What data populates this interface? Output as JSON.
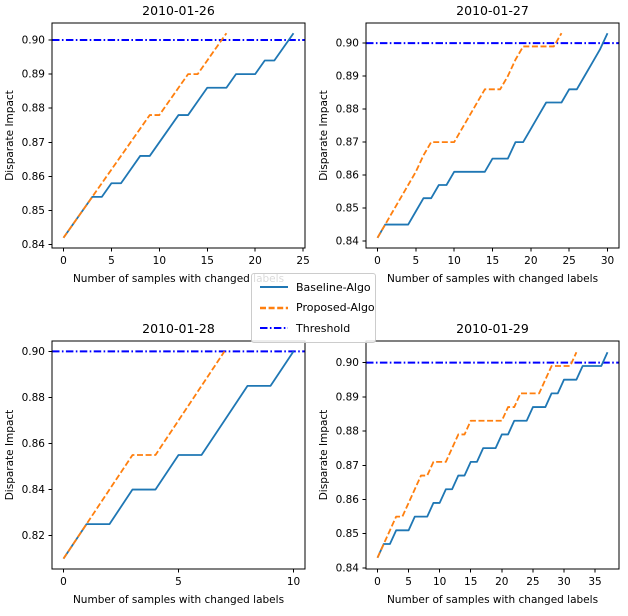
{
  "figure": {
    "background": "#ffffff"
  },
  "colors": {
    "baseline": "#1f77b4",
    "proposed": "#ff7f0e",
    "threshold": "#0000ff",
    "axis": "#000000",
    "legend_border": "#cccccc"
  },
  "legend": {
    "position": "figure-center",
    "items": [
      {
        "label": "Baseline-Algo",
        "color": "#1f77b4",
        "style": "solid"
      },
      {
        "label": "Proposed-Algo",
        "color": "#ff7f0e",
        "style": "dashed"
      },
      {
        "label": "Threshold",
        "color": "#0000ff",
        "style": "dashdot"
      }
    ]
  },
  "chart_data": [
    {
      "type": "line",
      "title": "2010-01-26",
      "xlabel": "Number of samples with changed labels",
      "ylabel": "Disparate Impact",
      "xlim": [
        -1.2,
        25.2
      ],
      "ylim": [
        0.839,
        0.905
      ],
      "xticks": [
        0,
        5,
        10,
        15,
        20,
        25
      ],
      "yticks": [
        0.84,
        0.85,
        0.86,
        0.87,
        0.88,
        0.89,
        0.9
      ],
      "grid": false,
      "threshold": 0.9,
      "series": [
        {
          "name": "Baseline-Algo",
          "style": "solid",
          "color": "#1f77b4",
          "x": [
            0,
            1,
            2,
            3,
            4,
            5,
            6,
            7,
            8,
            9,
            10,
            11,
            12,
            13,
            14,
            15,
            16,
            17,
            18,
            19,
            20,
            21,
            22,
            23,
            24
          ],
          "y": [
            0.842,
            0.846,
            0.85,
            0.854,
            0.854,
            0.858,
            0.858,
            0.862,
            0.866,
            0.866,
            0.87,
            0.874,
            0.878,
            0.878,
            0.882,
            0.886,
            0.886,
            0.886,
            0.89,
            0.89,
            0.89,
            0.894,
            0.894,
            0.898,
            0.902
          ]
        },
        {
          "name": "Proposed-Algo",
          "style": "dashed",
          "color": "#ff7f0e",
          "x": [
            0,
            1,
            2,
            3,
            4,
            5,
            6,
            7,
            8,
            9,
            10,
            11,
            12,
            13,
            14,
            15,
            16,
            17
          ],
          "y": [
            0.842,
            0.846,
            0.85,
            0.854,
            0.858,
            0.862,
            0.866,
            0.87,
            0.874,
            0.878,
            0.878,
            0.882,
            0.886,
            0.89,
            0.89,
            0.894,
            0.898,
            0.902
          ]
        }
      ]
    },
    {
      "type": "line",
      "title": "2010-01-27",
      "xlabel": "Number of samples with changed labels",
      "ylabel": "Disparate Impact",
      "xlim": [
        -1.5,
        31.5
      ],
      "ylim": [
        0.8379,
        0.9061
      ],
      "xticks": [
        0,
        5,
        10,
        15,
        20,
        25,
        30
      ],
      "yticks": [
        0.84,
        0.85,
        0.86,
        0.87,
        0.88,
        0.89,
        0.9
      ],
      "grid": false,
      "threshold": 0.9,
      "series": [
        {
          "name": "Baseline-Algo",
          "style": "solid",
          "color": "#1f77b4",
          "x": [
            0,
            1,
            2,
            3,
            4,
            5,
            6,
            7,
            8,
            9,
            10,
            11,
            12,
            13,
            14,
            15,
            16,
            17,
            18,
            19,
            20,
            21,
            22,
            23,
            24,
            25,
            26,
            27,
            28,
            29,
            30
          ],
          "y": [
            0.841,
            0.845,
            0.845,
            0.845,
            0.845,
            0.849,
            0.853,
            0.853,
            0.857,
            0.857,
            0.861,
            0.861,
            0.861,
            0.861,
            0.861,
            0.865,
            0.865,
            0.865,
            0.87,
            0.87,
            0.874,
            0.878,
            0.882,
            0.882,
            0.882,
            0.886,
            0.886,
            0.89,
            0.894,
            0.898,
            0.903
          ]
        },
        {
          "name": "Proposed-Algo",
          "style": "dashed",
          "color": "#ff7f0e",
          "x": [
            0,
            1,
            2,
            3,
            4,
            5,
            6,
            7,
            8,
            9,
            10,
            11,
            12,
            13,
            14,
            15,
            16,
            17,
            18,
            19,
            20,
            21,
            22,
            23,
            24
          ],
          "y": [
            0.841,
            0.845,
            0.849,
            0.853,
            0.857,
            0.861,
            0.866,
            0.87,
            0.87,
            0.87,
            0.87,
            0.874,
            0.878,
            0.882,
            0.886,
            0.886,
            0.886,
            0.89,
            0.895,
            0.899,
            0.899,
            0.899,
            0.899,
            0.899,
            0.903
          ]
        }
      ]
    },
    {
      "type": "line",
      "title": "2010-01-28",
      "xlabel": "Number of samples with changed labels",
      "ylabel": "Disparate Impact",
      "xlim": [
        -0.5,
        10.5
      ],
      "ylim": [
        0.8055,
        0.9045
      ],
      "xticks": [
        0,
        5,
        10
      ],
      "yticks": [
        0.82,
        0.84,
        0.86,
        0.88,
        0.9
      ],
      "grid": false,
      "threshold": 0.9,
      "series": [
        {
          "name": "Baseline-Algo",
          "style": "solid",
          "color": "#1f77b4",
          "x": [
            0,
            1,
            2,
            3,
            4,
            5,
            6,
            7,
            8,
            9,
            10
          ],
          "y": [
            0.81,
            0.825,
            0.825,
            0.84,
            0.84,
            0.855,
            0.855,
            0.87,
            0.885,
            0.885,
            0.9
          ]
        },
        {
          "name": "Proposed-Algo",
          "style": "dashed",
          "color": "#ff7f0e",
          "x": [
            0,
            1,
            2,
            3,
            4,
            5,
            6,
            7
          ],
          "y": [
            0.81,
            0.825,
            0.84,
            0.855,
            0.855,
            0.87,
            0.885,
            0.9
          ]
        }
      ]
    },
    {
      "type": "line",
      "title": "2010-01-29",
      "xlabel": "Number of samples with changed labels",
      "ylabel": "Disparate Impact",
      "xlim": [
        -1.85,
        38.85
      ],
      "ylim": [
        0.8397,
        0.9063
      ],
      "xticks": [
        0,
        5,
        10,
        15,
        20,
        25,
        30,
        35
      ],
      "yticks": [
        0.84,
        0.85,
        0.86,
        0.87,
        0.88,
        0.89,
        0.9
      ],
      "grid": false,
      "threshold": 0.9,
      "series": [
        {
          "name": "Baseline-Algo",
          "style": "solid",
          "color": "#1f77b4",
          "x": [
            0,
            1,
            2,
            3,
            4,
            5,
            6,
            7,
            8,
            9,
            10,
            11,
            12,
            13,
            14,
            15,
            16,
            17,
            18,
            19,
            20,
            21,
            22,
            23,
            24,
            25,
            26,
            27,
            28,
            29,
            30,
            31,
            32,
            33,
            34,
            35,
            36,
            37
          ],
          "y": [
            0.843,
            0.847,
            0.847,
            0.851,
            0.851,
            0.851,
            0.855,
            0.855,
            0.855,
            0.859,
            0.859,
            0.863,
            0.863,
            0.867,
            0.867,
            0.871,
            0.871,
            0.875,
            0.875,
            0.875,
            0.879,
            0.879,
            0.883,
            0.883,
            0.883,
            0.887,
            0.887,
            0.887,
            0.891,
            0.891,
            0.895,
            0.895,
            0.895,
            0.899,
            0.899,
            0.899,
            0.899,
            0.903
          ]
        },
        {
          "name": "Proposed-Algo",
          "style": "dashed",
          "color": "#ff7f0e",
          "x": [
            0,
            1,
            2,
            3,
            4,
            5,
            6,
            7,
            8,
            9,
            10,
            11,
            12,
            13,
            14,
            15,
            16,
            17,
            18,
            19,
            20,
            21,
            22,
            23,
            24,
            25,
            26,
            27,
            28,
            29,
            30,
            31,
            32
          ],
          "y": [
            0.843,
            0.847,
            0.851,
            0.855,
            0.855,
            0.859,
            0.863,
            0.867,
            0.867,
            0.871,
            0.871,
            0.871,
            0.875,
            0.879,
            0.879,
            0.883,
            0.883,
            0.883,
            0.883,
            0.883,
            0.883,
            0.887,
            0.887,
            0.891,
            0.891,
            0.891,
            0.891,
            0.895,
            0.899,
            0.899,
            0.899,
            0.899,
            0.903
          ]
        }
      ]
    }
  ]
}
